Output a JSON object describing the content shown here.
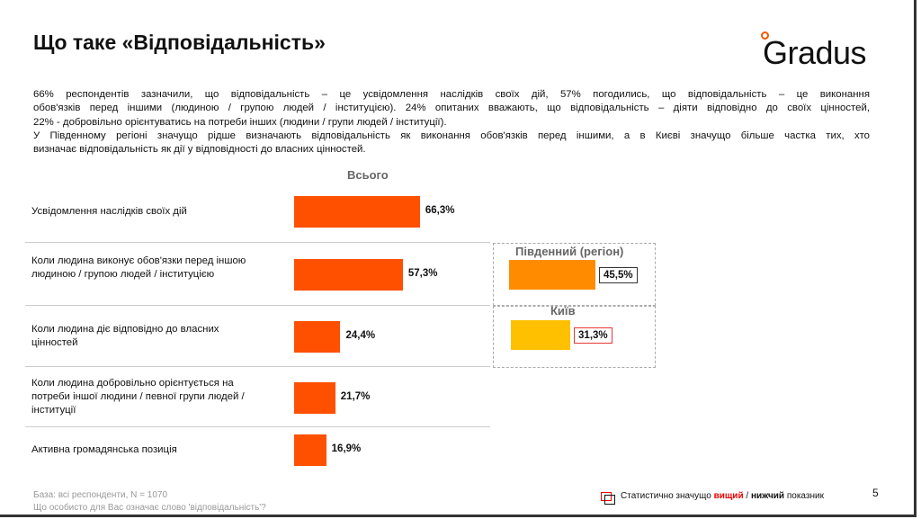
{
  "header": {
    "title": "Що таке «Відповідальність»",
    "logo": "Gradus"
  },
  "intro": [
    "66% респондентів зазначили, що відповідальність – це усвідомлення наслідків своїх дій, 57% погодились, що відповідальність – це виконання",
    "обов'язків перед іншими (людиною / групою людей / інституцією). 24% опитаних вважають, що відповідальність – діяти відповідно до своїх цінностей,",
    "22% - добровільно орієнтуватись на потреби інших (людини / групи людей / інституції).",
    "У Південному регіоні значущо рідше визначають відповідальність як виконання обов'язків перед іншими, а в Києві значущо більше частка тих, хто",
    "визначає відповідальність як дії у відповідності до власних цінностей."
  ],
  "chart_data": {
    "type": "bar",
    "title": "Всього",
    "categories": [
      "Усвідомлення наслідків своїх дій",
      "Коли людина виконує обов'язки перед іншою людиною / групою людей / інституцією",
      "Коли людина діє відповідно до власних цінностей",
      "Коли людина добровільно орієнтується на потреби іншої людини / певної групи людей / інституції",
      "Активна громадянська позиція"
    ],
    "values": [
      66.3,
      57.3,
      24.4,
      21.7,
      16.9
    ],
    "value_labels": [
      "66,3%",
      "57,3%",
      "24,4%",
      "21,7%",
      "16,9%"
    ],
    "bar_color": "#ff5000",
    "regional": [
      {
        "name": "Південний (регіон)",
        "category_index": 1,
        "value": 45.5,
        "label": "45,5%",
        "color": "#ff8c00",
        "significance": "lower",
        "border": "#333333"
      },
      {
        "name": "Київ",
        "category_index": 2,
        "value": 31.3,
        "label": "31,3%",
        "color": "#ffc000",
        "significance": "higher",
        "border": "#e53935"
      }
    ]
  },
  "footer": {
    "base": "База: всі респонденти, N = 1070",
    "question": "Що особисто для Вас означає слово 'відповідальність'?",
    "legend_prefix": "Статистично значущо ",
    "legend_high": "вищий",
    "legend_sep": " / ",
    "legend_low": "нижчий",
    "legend_suffix": " показник",
    "page": "5"
  }
}
